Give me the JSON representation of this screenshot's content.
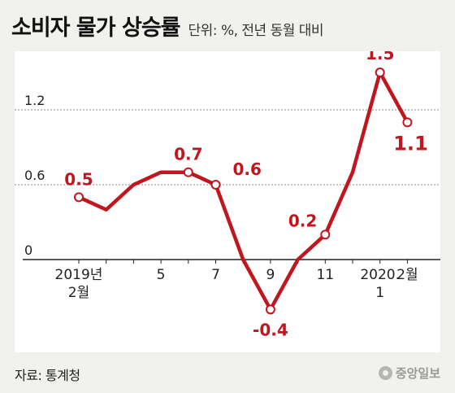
{
  "title": "소비자 물가 상승률",
  "subtitle": "단위: %, 전년 동월 대비",
  "source": "자료: 통계청",
  "logo_text": "중앙일보",
  "colors": {
    "line": "#c0161d",
    "label": "#c0161d",
    "grid": "#888888",
    "background": "#f1f1ee"
  },
  "chart_data": {
    "type": "line",
    "x": [
      "2019-02",
      "2019-03",
      "2019-04",
      "2019-05",
      "2019-06",
      "2019-07",
      "2019-08",
      "2019-09",
      "2019-10",
      "2019-11",
      "2019-12",
      "2020-01",
      "2020-02"
    ],
    "values": [
      0.5,
      0.4,
      0.6,
      0.7,
      0.7,
      0.6,
      0.0,
      -0.4,
      0.0,
      0.2,
      0.7,
      1.5,
      1.1
    ],
    "ylim": [
      -0.5,
      1.6
    ],
    "yticks": [
      {
        "value": 0,
        "label": "0"
      },
      {
        "value": 0.6,
        "label": "0.6"
      },
      {
        "value": 1.2,
        "label": "1.2"
      }
    ],
    "xticks": [
      {
        "index": 0,
        "lines": [
          "2019년",
          "2월"
        ]
      },
      {
        "index": 3,
        "lines": [
          "5"
        ]
      },
      {
        "index": 5,
        "lines": [
          "7"
        ]
      },
      {
        "index": 7,
        "lines": [
          "9"
        ]
      },
      {
        "index": 9,
        "lines": [
          "11"
        ]
      },
      {
        "index": 11,
        "lines": [
          "2020.",
          "1"
        ]
      },
      {
        "index": 12,
        "lines": [
          "2월"
        ]
      }
    ],
    "labeled_points": [
      {
        "index": 0,
        "label": "0.5"
      },
      {
        "index": 4,
        "label": "0.7"
      },
      {
        "index": 5,
        "label": "0.6"
      },
      {
        "index": 7,
        "label": "-0.4"
      },
      {
        "index": 9,
        "label": "0.2"
      },
      {
        "index": 11,
        "label": "1.5"
      },
      {
        "index": 12,
        "label": "1.1"
      }
    ],
    "grid": true,
    "legend": false
  }
}
